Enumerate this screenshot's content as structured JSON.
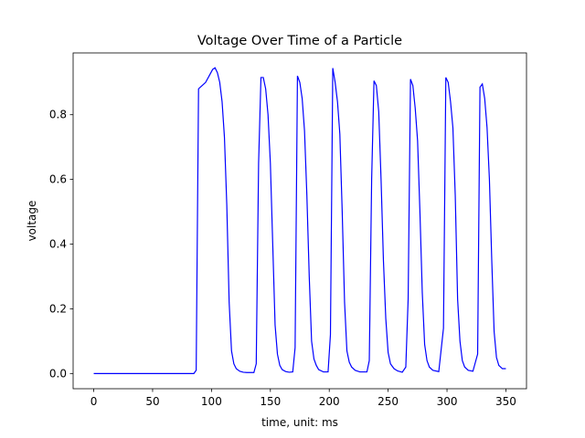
{
  "chart_data": {
    "type": "line",
    "title": "Voltage Over Time of a Particle",
    "x_label": "time, unit: ms",
    "y_label": "voltage",
    "x": [
      0,
      85,
      87,
      89,
      92,
      95,
      98,
      101,
      103,
      105,
      107,
      109,
      111,
      113,
      115,
      117,
      119,
      121,
      124,
      127,
      130,
      136,
      138,
      140,
      142,
      144,
      146,
      148,
      150,
      152,
      154,
      156,
      158,
      160,
      163,
      166,
      169,
      171,
      173,
      175,
      177,
      179,
      181,
      183,
      185,
      187,
      189,
      191,
      195,
      199,
      201,
      203,
      205,
      207,
      209,
      211,
      213,
      215,
      217,
      219,
      222,
      226,
      232,
      234,
      236,
      238,
      240,
      242,
      244,
      246,
      248,
      250,
      252,
      255,
      258,
      262,
      265,
      267,
      269,
      271,
      273,
      275,
      277,
      279,
      281,
      283,
      285,
      288,
      293,
      297,
      299,
      301,
      303,
      305,
      307,
      309,
      311,
      313,
      315,
      318,
      322,
      326,
      328,
      330,
      332,
      334,
      336,
      338,
      340,
      342,
      344,
      347,
      350
    ],
    "series": [
      {
        "color": "#0000ff",
        "values": [
          0,
          0,
          0.01,
          0.88,
          0.89,
          0.9,
          0.92,
          0.94,
          0.945,
          0.93,
          0.9,
          0.84,
          0.73,
          0.52,
          0.22,
          0.07,
          0.03,
          0.015,
          0.007,
          0.004,
          0.003,
          0.003,
          0.03,
          0.65,
          0.915,
          0.915,
          0.88,
          0.8,
          0.65,
          0.4,
          0.15,
          0.06,
          0.025,
          0.012,
          0.006,
          0.004,
          0.005,
          0.08,
          0.92,
          0.9,
          0.85,
          0.75,
          0.55,
          0.3,
          0.1,
          0.045,
          0.025,
          0.012,
          0.005,
          0.005,
          0.12,
          0.944,
          0.9,
          0.84,
          0.74,
          0.5,
          0.22,
          0.07,
          0.035,
          0.02,
          0.01,
          0.005,
          0.005,
          0.04,
          0.6,
          0.905,
          0.89,
          0.81,
          0.6,
          0.35,
          0.17,
          0.065,
          0.03,
          0.015,
          0.008,
          0.004,
          0.02,
          0.23,
          0.91,
          0.89,
          0.82,
          0.72,
          0.5,
          0.25,
          0.09,
          0.04,
          0.02,
          0.01,
          0.006,
          0.14,
          0.915,
          0.9,
          0.84,
          0.76,
          0.55,
          0.23,
          0.1,
          0.04,
          0.02,
          0.01,
          0.007,
          0.06,
          0.885,
          0.895,
          0.85,
          0.76,
          0.6,
          0.35,
          0.13,
          0.05,
          0.025,
          0.015,
          0.015
        ]
      }
    ],
    "xlim": [
      -17.5,
      367.5
    ],
    "ylim": [
      -0.047,
      0.991
    ],
    "xticks": [
      0,
      50,
      100,
      150,
      200,
      250,
      300,
      350
    ],
    "yticks": [
      {
        "value": 0,
        "label": "0.0"
      },
      0.2,
      0.4,
      0.6,
      0.8
    ]
  }
}
